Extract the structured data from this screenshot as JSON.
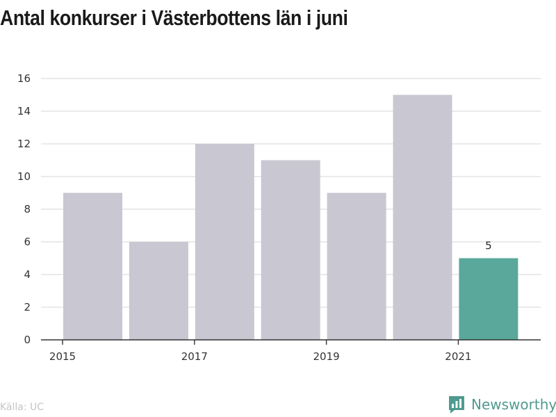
{
  "page": {
    "title": "Antal konkurser i Västerbottens län i juni"
  },
  "chart_data": {
    "type": "bar",
    "title": "Antal konkurser i Västerbottens län i juni",
    "xlabel": "",
    "ylabel": "",
    "categories": [
      "2015",
      "2016",
      "2017",
      "2018",
      "2019",
      "2020",
      "2021"
    ],
    "values": [
      9,
      6,
      12,
      11,
      9,
      15,
      5
    ],
    "x_tick_labels": [
      "2015",
      "2017",
      "2019",
      "2021"
    ],
    "y_ticks": [
      "0",
      "2",
      "4",
      "6",
      "8",
      "10",
      "12",
      "14",
      "16"
    ],
    "ylim": [
      0,
      16
    ],
    "grid": true,
    "highlight_index": 6,
    "highlight_label": "5",
    "colors": {
      "bar": "#c8c7d2",
      "highlight": "#5aa89b",
      "grid": "#dddddd",
      "axis": "#333333"
    }
  },
  "footer": {
    "source": "Källa: UC",
    "brand": "Newsworthy",
    "brand_icon": "newsworthy-logo-icon"
  }
}
